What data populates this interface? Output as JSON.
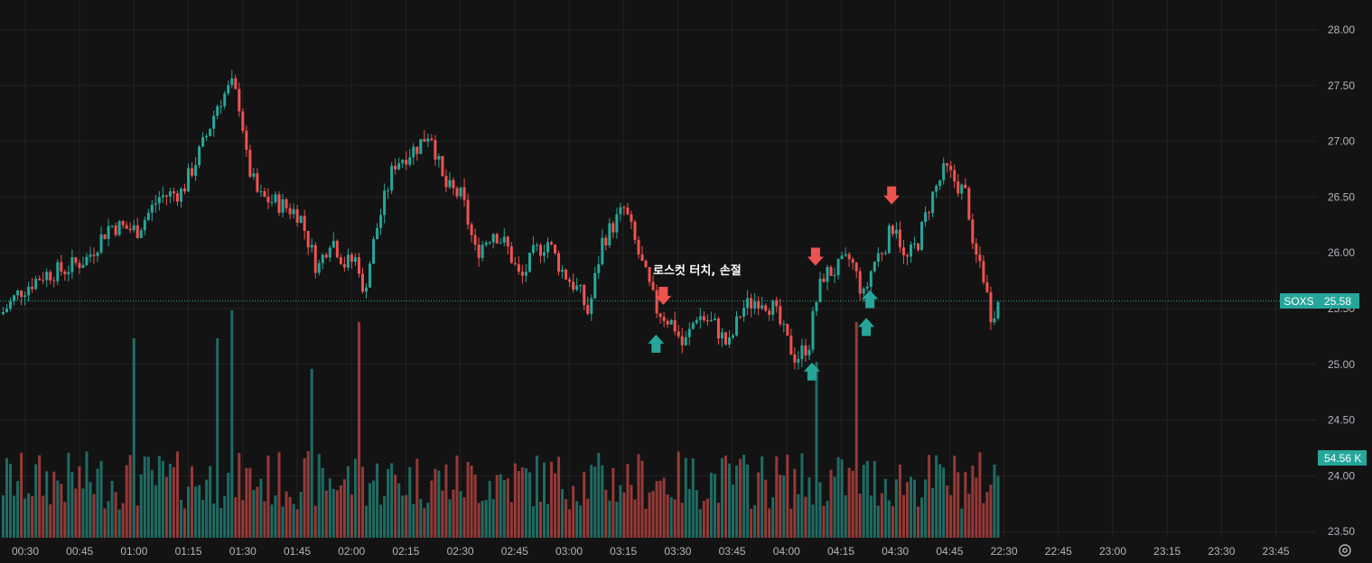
{
  "chart_data": {
    "type": "candlestick",
    "symbol": "SOXS",
    "last_price": "25.58",
    "last_volume": "54.56 K",
    "annotation": "로스컷 터치, 손절",
    "y_ticks": [
      "28.00",
      "27.50",
      "27.00",
      "26.50",
      "26.00",
      "25.50",
      "25.00",
      "24.50",
      "24.00",
      "23.50"
    ],
    "x_ticks": [
      "00:30",
      "00:45",
      "01:00",
      "01:15",
      "01:30",
      "01:45",
      "02:00",
      "02:15",
      "02:30",
      "02:45",
      "03:00",
      "03:15",
      "03:30",
      "03:45",
      "04:00",
      "04:15",
      "04:30",
      "04:45",
      "22:30",
      "22:45",
      "23:00",
      "23:15",
      "23:30",
      "23:45"
    ],
    "ylim": [
      23.45,
      28.1
    ],
    "grid": true,
    "anchors": [
      [
        0,
        25.45
      ],
      [
        20,
        25.65
      ],
      [
        45,
        25.8
      ],
      [
        70,
        25.85
      ],
      [
        95,
        25.95
      ],
      [
        120,
        26.25
      ],
      [
        150,
        26.2
      ],
      [
        175,
        26.5
      ],
      [
        200,
        26.55
      ],
      [
        225,
        27.0
      ],
      [
        240,
        27.35
      ],
      [
        255,
        27.5
      ],
      [
        265,
        27.3
      ],
      [
        272,
        26.8
      ],
      [
        285,
        26.5
      ],
      [
        305,
        26.45
      ],
      [
        330,
        26.35
      ],
      [
        350,
        25.85
      ],
      [
        365,
        26.15
      ],
      [
        380,
        25.9
      ],
      [
        395,
        25.95
      ],
      [
        400,
        25.6
      ],
      [
        415,
        26.2
      ],
      [
        435,
        26.8
      ],
      [
        460,
        26.95
      ],
      [
        475,
        27.1
      ],
      [
        490,
        26.6
      ],
      [
        510,
        26.5
      ],
      [
        525,
        26.0
      ],
      [
        545,
        26.2
      ],
      [
        560,
        26.05
      ],
      [
        575,
        25.75
      ],
      [
        590,
        26.0
      ],
      [
        605,
        26.1
      ],
      [
        620,
        25.85
      ],
      [
        640,
        25.65
      ],
      [
        650,
        25.45
      ],
      [
        665,
        26.1
      ],
      [
        690,
        26.4
      ],
      [
        705,
        26.0
      ],
      [
        725,
        25.5
      ],
      [
        745,
        25.35
      ],
      [
        755,
        25.15
      ],
      [
        770,
        25.45
      ],
      [
        790,
        25.35
      ],
      [
        805,
        25.15
      ],
      [
        820,
        25.5
      ],
      [
        840,
        25.6
      ],
      [
        855,
        25.5
      ],
      [
        870,
        25.2
      ],
      [
        880,
        25.05
      ],
      [
        895,
        25.2
      ],
      [
        900,
        25.5
      ],
      [
        910,
        25.8
      ],
      [
        925,
        25.85
      ],
      [
        940,
        25.95
      ],
      [
        955,
        25.6
      ],
      [
        965,
        25.9
      ],
      [
        980,
        26.1
      ],
      [
        990,
        26.3
      ],
      [
        1000,
        25.9
      ],
      [
        1015,
        26.1
      ],
      [
        1030,
        26.5
      ],
      [
        1045,
        26.75
      ],
      [
        1060,
        26.6
      ],
      [
        1070,
        26.5
      ],
      [
        1075,
        26.0
      ],
      [
        1085,
        25.9
      ],
      [
        1095,
        25.45
      ],
      [
        1107,
        25.58
      ]
    ],
    "volume_spikes": [
      [
        148,
        0.85
      ],
      [
        241,
        0.85
      ],
      [
        257,
        0.97
      ],
      [
        345,
        0.72
      ],
      [
        397,
        0.92
      ],
      [
        903,
        0.75
      ],
      [
        945,
        0.92
      ]
    ],
    "signals": [
      {
        "type": "buy",
        "time": "03:24",
        "price": 25.25
      },
      {
        "type": "sell",
        "time": "03:26",
        "price": 25.55
      },
      {
        "type": "buy",
        "time": "04:07",
        "price": 25.0
      },
      {
        "type": "sell",
        "time": "04:08",
        "price": 25.9
      },
      {
        "type": "buy",
        "time": "04:22",
        "price": 25.4
      },
      {
        "type": "buy",
        "time": "04:23",
        "price": 25.65
      },
      {
        "type": "sell",
        "time": "04:29",
        "price": 26.45
      }
    ],
    "colors": {
      "up": "#26a69a",
      "down": "#ef5350",
      "grid": "#232323",
      "label": "#b2b5be",
      "bg": "#131313",
      "tag": "#26a69a"
    }
  }
}
